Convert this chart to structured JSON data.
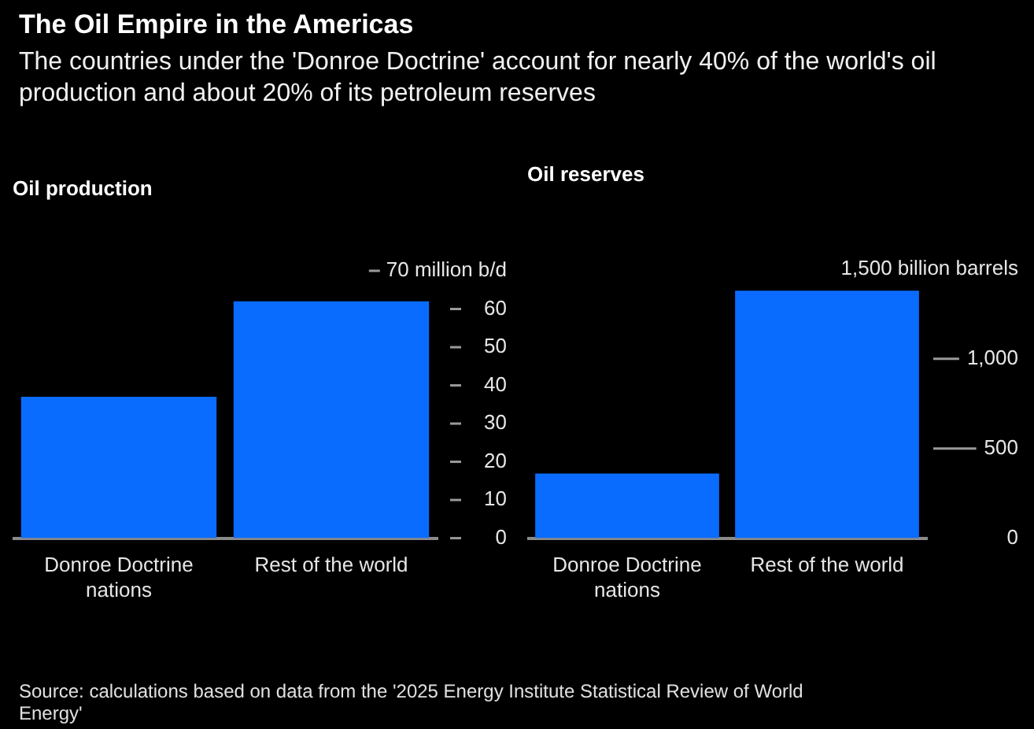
{
  "chart_data": [
    {
      "type": "other",
      "title": "The Oil Empire in the Americas",
      "subtitle": "The countries under the 'Donroe Doctrine' account for nearly 40% of the world's oil production and about 20% of its petroleum reserves",
      "annotations": [
        "Source: calculations based on data from the '2025 Energy Institute Statistical Review of World Energy'"
      ]
    },
    {
      "type": "bar",
      "title": "Oil production",
      "categories": [
        "Donroe Doctrine nations",
        "Rest of the world"
      ],
      "values": [
        37,
        62
      ],
      "color": "#0a6cff",
      "ylim": [
        0,
        70
      ],
      "yticks": [
        0,
        10,
        20,
        30,
        40,
        50,
        60,
        {
          "value": 70,
          "label": "70 million b/d"
        }
      ]
    },
    {
      "type": "bar",
      "title": "Oil reserves",
      "categories": [
        "Donroe Doctrine nations",
        "Rest of the world"
      ],
      "values": [
        360,
        1380
      ],
      "color": "#0a6cff",
      "ylim": [
        0,
        1500
      ],
      "yticks": [
        0,
        500,
        {
          "value": 1000,
          "label": "1,000"
        },
        {
          "value": 1500,
          "label": "1,500 billion barrels"
        }
      ]
    }
  ]
}
